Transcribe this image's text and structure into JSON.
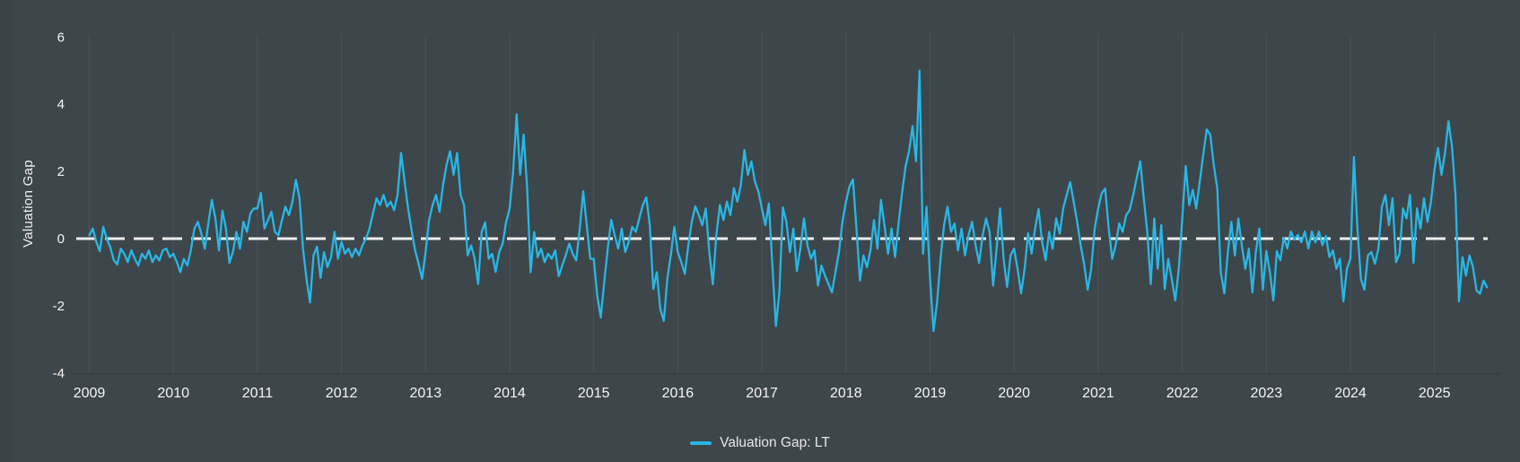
{
  "figure": {
    "background": "#3d464a",
    "grid_color": "#4c5458",
    "axis_line_color": "#353d41",
    "text_color": "#f5f5f5",
    "y_axis": {
      "title": "Valuation Gap",
      "ticks": [
        6,
        4,
        2,
        0,
        -2,
        -4
      ]
    },
    "x_axis": {
      "tick_years": [
        2009,
        2010,
        2011,
        2012,
        2013,
        2014,
        2015,
        2016,
        2017,
        2018,
        2019,
        2020,
        2021,
        2022,
        2023,
        2024,
        2025
      ]
    },
    "zero_line": {
      "value": 0,
      "color": "#ededed",
      "style": "dashed"
    },
    "legend": {
      "label": "Valuation Gap: LT",
      "swatch_color": "#29b7e6",
      "position": "bottom-center"
    }
  },
  "chart_data": {
    "type": "line",
    "title": "",
    "xlabel": "",
    "ylabel": "Valuation Gap",
    "ylim": [
      -4,
      6
    ],
    "xlim": [
      2008.845,
      2025.71
    ],
    "grid": "vertical-yearly",
    "legend_position": "bottom-center",
    "series": [
      {
        "name": "Valuation Gap: LT",
        "color": "#29b7e6",
        "x_start": 2009.0,
        "x_step_years": 0.0416667,
        "values": [
          0.1,
          0.3,
          -0.1,
          -0.37,
          0.35,
          0.0,
          -0.25,
          -0.64,
          -0.77,
          -0.3,
          -0.45,
          -0.7,
          -0.35,
          -0.6,
          -0.8,
          -0.45,
          -0.6,
          -0.35,
          -0.7,
          -0.5,
          -0.65,
          -0.35,
          -0.3,
          -0.55,
          -0.45,
          -0.7,
          -1.0,
          -0.6,
          -0.8,
          -0.35,
          0.3,
          0.5,
          0.15,
          -0.3,
          0.45,
          1.15,
          0.6,
          -0.35,
          0.83,
          0.3,
          -0.72,
          -0.4,
          0.2,
          -0.3,
          0.5,
          0.2,
          0.75,
          0.9,
          0.9,
          1.36,
          0.3,
          0.55,
          0.8,
          0.2,
          0.1,
          0.55,
          0.95,
          0.7,
          1.1,
          1.75,
          1.2,
          -0.3,
          -1.2,
          -1.9,
          -0.5,
          -0.24,
          -1.17,
          -0.4,
          -0.85,
          -0.55,
          0.2,
          -0.6,
          -0.1,
          -0.45,
          -0.3,
          -0.55,
          -0.3,
          -0.5,
          -0.2,
          0.0,
          0.3,
          0.75,
          1.2,
          1.0,
          1.3,
          0.95,
          1.1,
          0.85,
          1.3,
          2.55,
          1.7,
          0.9,
          0.25,
          -0.35,
          -0.75,
          -1.2,
          -0.4,
          0.55,
          1.0,
          1.3,
          0.8,
          1.6,
          2.2,
          2.6,
          1.9,
          2.55,
          1.3,
          1.0,
          -0.5,
          -0.2,
          -0.6,
          -1.35,
          0.2,
          0.48,
          -0.6,
          -0.45,
          -0.99,
          -0.4,
          -0.15,
          0.5,
          0.9,
          2.0,
          3.7,
          1.9,
          3.1,
          1.5,
          -1.0,
          0.2,
          -0.55,
          -0.3,
          -0.7,
          -0.45,
          -0.6,
          -0.35,
          -1.12,
          -0.8,
          -0.5,
          -0.15,
          -0.45,
          -0.65,
          0.3,
          1.41,
          0.4,
          -0.6,
          -0.6,
          -1.7,
          -2.35,
          -1.3,
          -0.3,
          0.56,
          0.1,
          -0.3,
          0.3,
          -0.4,
          -0.1,
          0.35,
          0.2,
          0.6,
          1.0,
          1.23,
          0.4,
          -1.5,
          -1.0,
          -2.1,
          -2.45,
          -1.2,
          -0.5,
          0.35,
          -0.4,
          -0.7,
          -1.05,
          -0.2,
          0.5,
          0.96,
          0.7,
          0.4,
          0.9,
          -0.4,
          -1.36,
          0.1,
          1.0,
          0.55,
          1.1,
          0.7,
          1.5,
          1.1,
          1.6,
          2.64,
          1.9,
          2.3,
          1.7,
          1.4,
          0.9,
          0.4,
          1.05,
          -0.8,
          -2.6,
          -1.6,
          0.93,
          0.5,
          -0.4,
          0.3,
          -0.96,
          -0.3,
          0.6,
          -0.2,
          -0.6,
          -0.35,
          -1.4,
          -0.8,
          -1.1,
          -1.35,
          -1.6,
          -1.0,
          -0.4,
          0.5,
          1.1,
          1.55,
          1.76,
          0.3,
          -1.25,
          -0.5,
          -0.85,
          -0.35,
          0.55,
          -0.3,
          1.15,
          0.4,
          -0.45,
          0.3,
          -0.55,
          0.45,
          1.35,
          2.15,
          2.6,
          3.35,
          2.3,
          5.0,
          -0.45,
          0.95,
          -1.2,
          -2.75,
          -1.9,
          -0.6,
          0.4,
          0.95,
          0.2,
          0.45,
          -0.35,
          0.3,
          -0.5,
          0.1,
          0.5,
          -0.2,
          -0.72,
          0.1,
          0.6,
          0.2,
          -1.4,
          -0.3,
          0.9,
          -0.6,
          -1.44,
          -0.5,
          -0.3,
          -0.91,
          -1.63,
          -0.9,
          0.16,
          -0.45,
          0.3,
          0.88,
          -0.1,
          -0.64,
          0.2,
          -0.3,
          0.61,
          0.15,
          0.9,
          1.3,
          1.68,
          1.1,
          0.5,
          -0.2,
          -0.77,
          -1.52,
          -0.9,
          0.3,
          0.9,
          1.35,
          1.49,
          0.3,
          -0.6,
          -0.2,
          0.45,
          0.2,
          0.7,
          0.85,
          1.3,
          1.8,
          2.3,
          1.2,
          0.2,
          -1.36,
          0.6,
          -0.9,
          0.4,
          -1.5,
          -0.6,
          -1.2,
          -1.84,
          -0.9,
          0.6,
          2.16,
          1.0,
          1.45,
          0.9,
          1.7,
          2.5,
          3.25,
          3.1,
          2.2,
          1.5,
          -1.0,
          -1.63,
          -0.4,
          0.5,
          -0.5,
          0.6,
          -0.2,
          -0.9,
          -0.3,
          -1.6,
          -0.4,
          0.3,
          -1.52,
          -0.37,
          -0.99,
          -1.84,
          -0.37,
          -0.64,
          0.03,
          -0.29,
          0.21,
          -0.03,
          0.11,
          -0.11,
          0.21,
          -0.29,
          0.21,
          -0.11,
          0.21,
          -0.2,
          0.08,
          -0.55,
          -0.35,
          -0.9,
          -0.6,
          -1.87,
          -0.9,
          -0.6,
          2.43,
          0.3,
          -1.2,
          -1.52,
          -0.5,
          -0.4,
          -0.75,
          -0.3,
          0.95,
          1.3,
          0.4,
          1.2,
          -0.7,
          -0.45,
          0.9,
          0.6,
          1.3,
          -0.72,
          0.9,
          0.3,
          1.2,
          0.5,
          1.1,
          2.05,
          2.7,
          1.9,
          2.55,
          3.49,
          2.75,
          1.3,
          -1.87,
          -0.55,
          -1.1,
          -0.5,
          -0.85,
          -1.55,
          -1.64,
          -1.25,
          -1.45
        ]
      }
    ]
  }
}
